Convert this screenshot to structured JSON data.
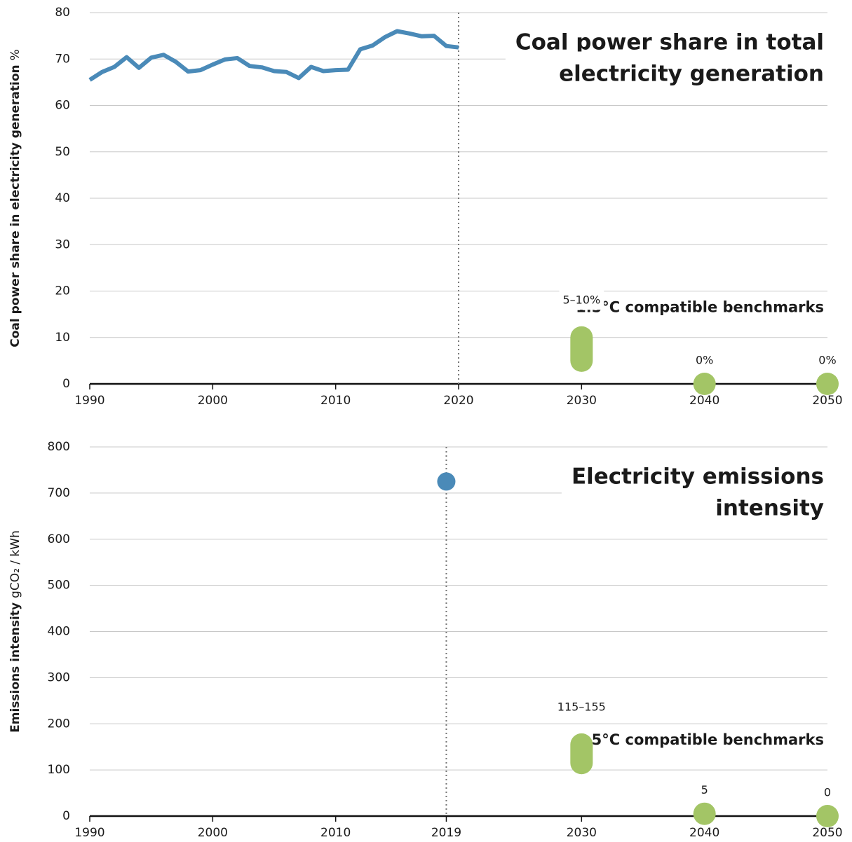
{
  "chart_data": [
    {
      "type": "line",
      "title": [
        "Coal power share in total",
        "electricity generation"
      ],
      "y_label": "Coal power share in electricity generation",
      "y_unit": "%",
      "x": [
        1990,
        1991,
        1992,
        1993,
        1994,
        1995,
        1996,
        1997,
        1998,
        1999,
        2000,
        2001,
        2002,
        2003,
        2004,
        2005,
        2006,
        2007,
        2008,
        2009,
        2010,
        2011,
        2012,
        2013,
        2014,
        2015,
        2016,
        2017,
        2018,
        2019,
        2020
      ],
      "values": [
        65.5,
        67.2,
        68.3,
        70.4,
        68.1,
        70.3,
        70.9,
        69.4,
        67.3,
        67.6,
        68.8,
        69.9,
        70.2,
        68.5,
        68.2,
        67.4,
        67.2,
        65.9,
        68.3,
        67.4,
        67.6,
        67.7,
        72.1,
        72.9,
        74.7,
        76.0,
        75.5,
        74.9,
        75.0,
        72.8,
        72.5
      ],
      "color": "#4a8ab8",
      "xlim": [
        1990,
        2050
      ],
      "xticks": [
        1990,
        2000,
        2010,
        2020,
        2030,
        2040,
        2050
      ],
      "ylim": [
        0,
        80
      ],
      "yticks": [
        0,
        10,
        20,
        30,
        40,
        50,
        60,
        70,
        80
      ],
      "grid": true,
      "vline": 2020,
      "benchmarks": {
        "label": "1.5°C compatible benchmarks",
        "color": "#a3c566",
        "x": [
          2030,
          2040,
          2050
        ],
        "low": [
          5,
          0,
          0
        ],
        "high": [
          10,
          0,
          0
        ],
        "value_labels": [
          "5–10%",
          "0%",
          "0%"
        ]
      }
    },
    {
      "type": "scatter",
      "title": [
        "Electricity emissions",
        "intensity"
      ],
      "y_label": "Emissions intensity",
      "y_unit": "gCO₂ / kWh",
      "x": [
        2019
      ],
      "values": [
        725
      ],
      "color": "#4a8ab8",
      "xlim": [
        1990,
        2050
      ],
      "xticks": [
        1990,
        2000,
        2010,
        2019,
        2030,
        2040,
        2050
      ],
      "ylim": [
        0,
        800
      ],
      "yticks": [
        0,
        100,
        200,
        300,
        400,
        500,
        600,
        700,
        800
      ],
      "grid": true,
      "vline": 2019,
      "benchmarks": {
        "label": "1.5°C compatible benchmarks",
        "color": "#a3c566",
        "x": [
          2030,
          2040,
          2050
        ],
        "low": [
          115,
          5,
          0
        ],
        "high": [
          155,
          5,
          0
        ],
        "value_labels": [
          "115–155",
          "5",
          "0"
        ]
      }
    }
  ]
}
